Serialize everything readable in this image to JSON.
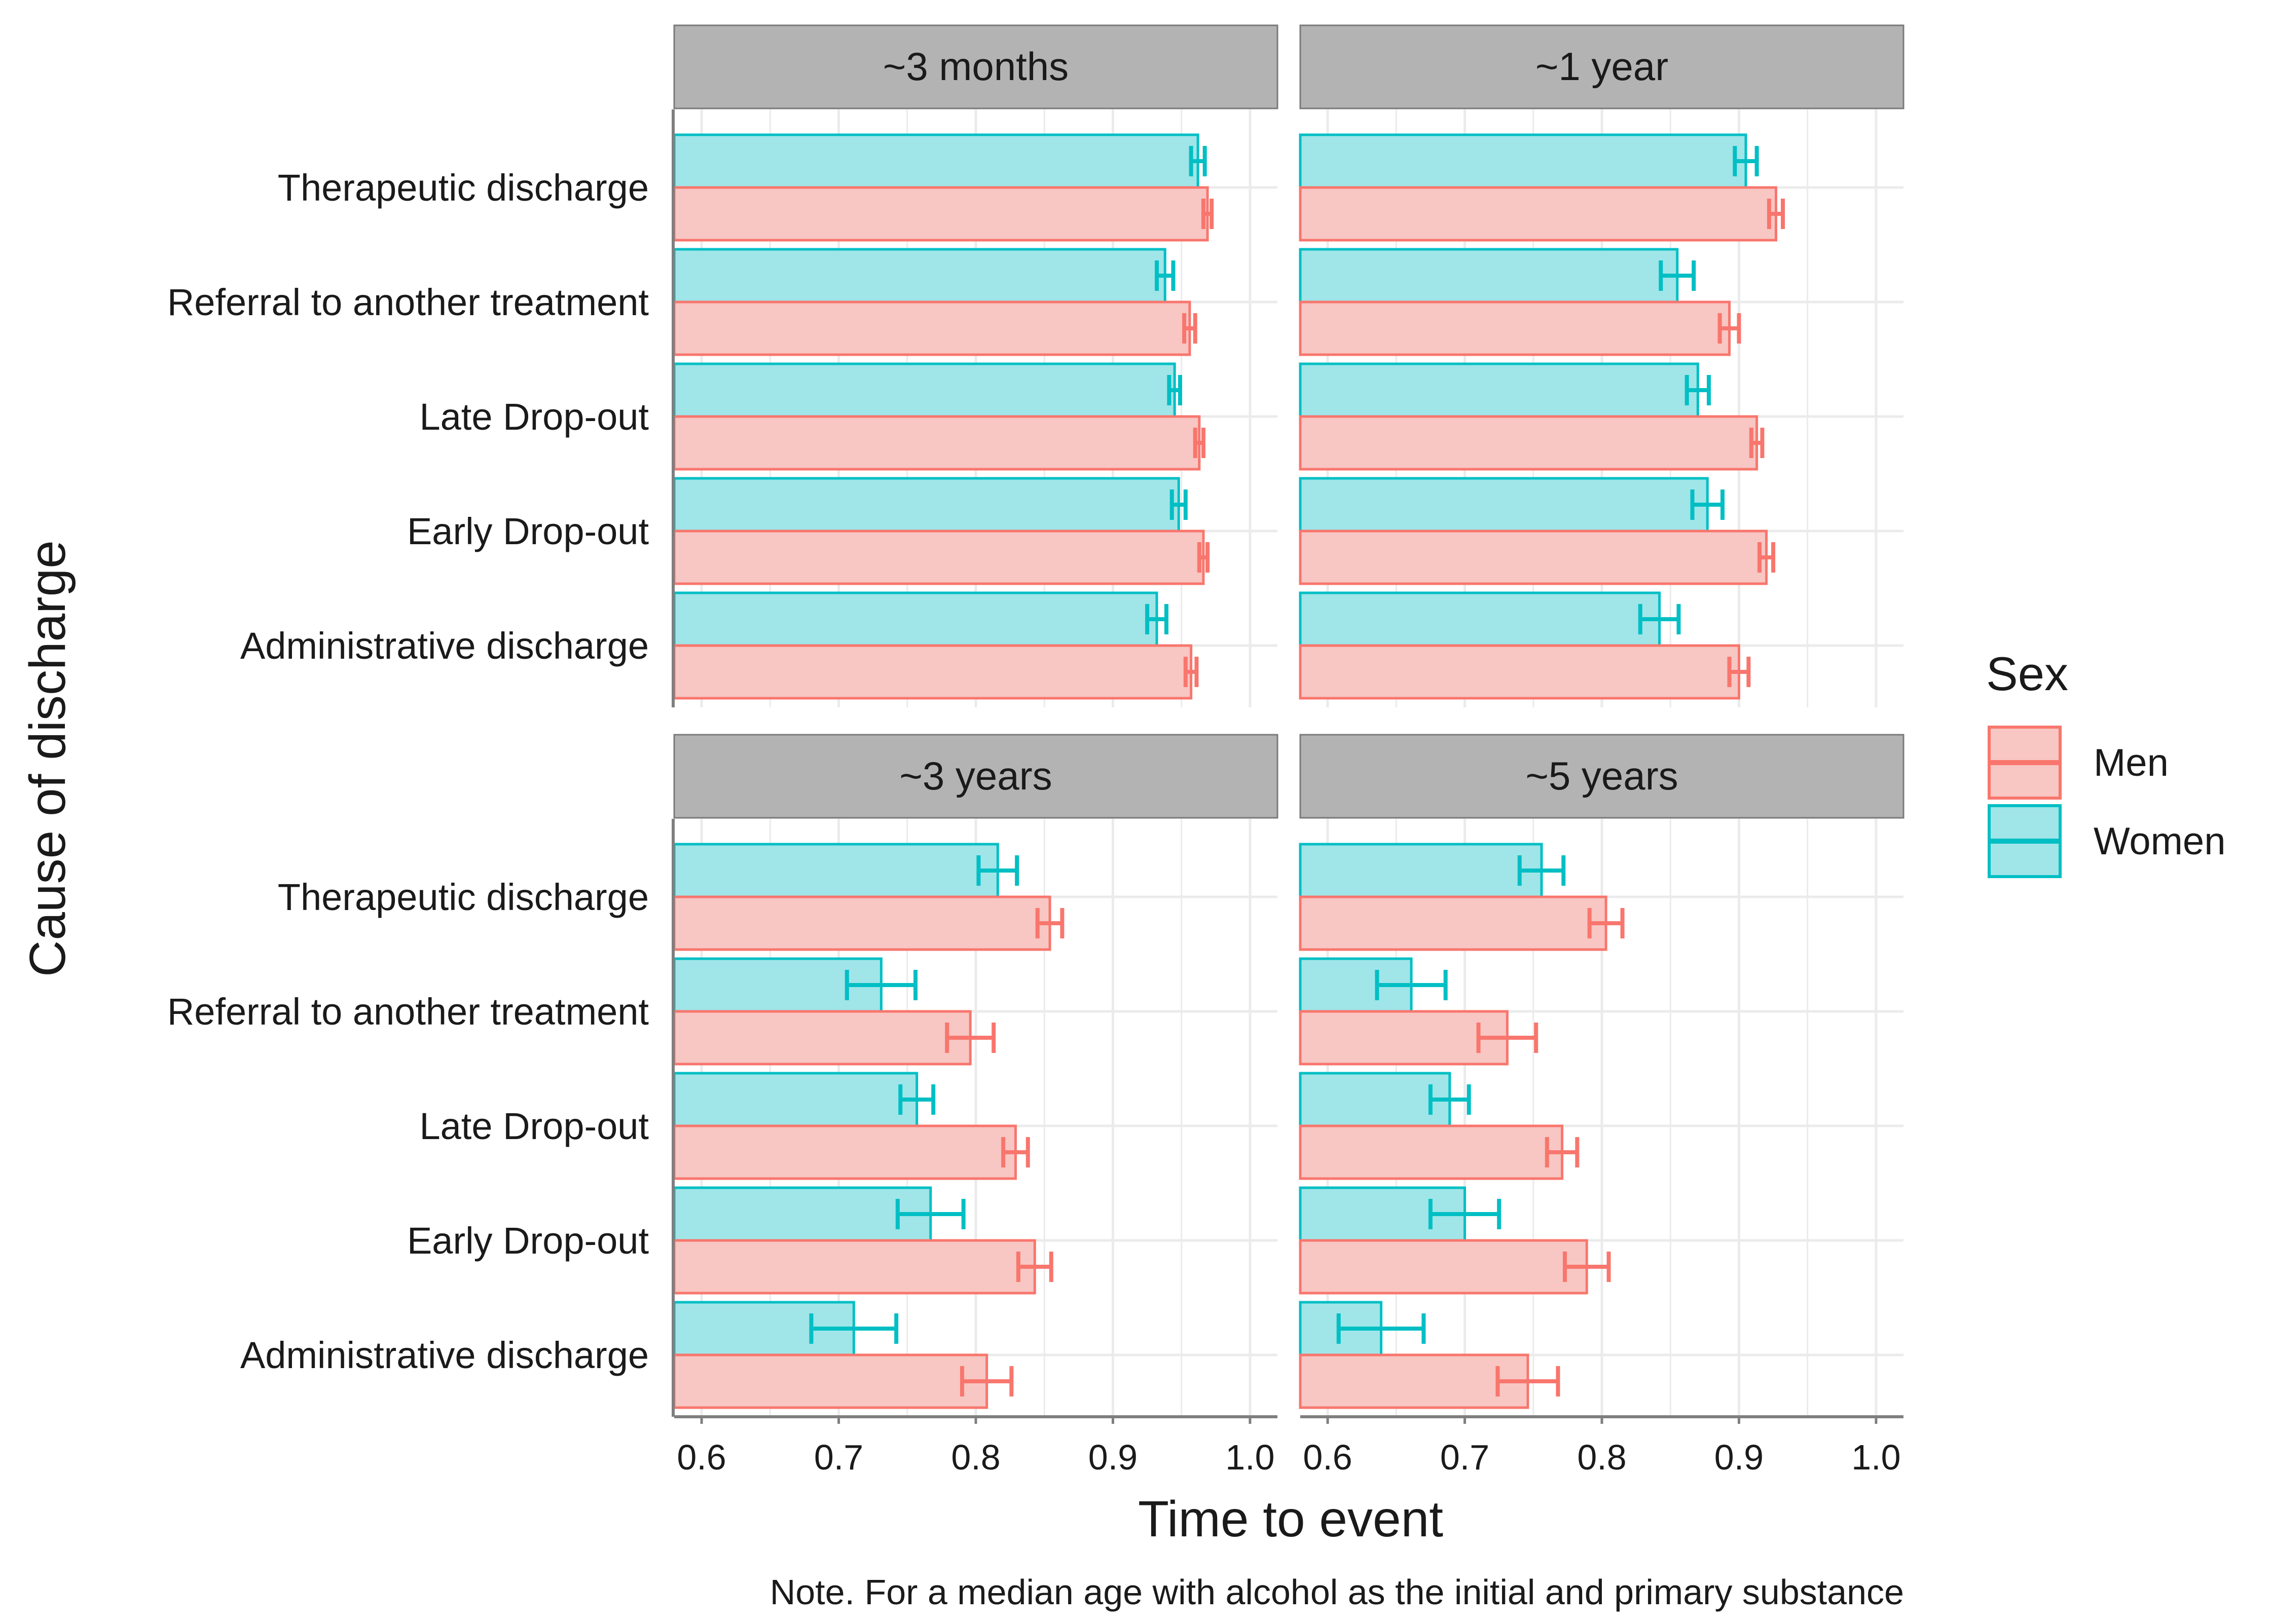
{
  "chart_data": {
    "type": "bar",
    "orientation": "horizontal",
    "facet": true,
    "xlabel": "Time to event",
    "ylabel": "Cause of discharge",
    "xlim": [
      0.58,
      1.02
    ],
    "xticks": [
      0.6,
      0.7,
      0.8,
      0.9,
      1.0
    ],
    "xtick_labels": [
      "0.6",
      "0.7",
      "0.8",
      "0.9",
      "1.0"
    ],
    "grid": true,
    "categories": [
      "Therapeutic discharge",
      "Referral to another treatment",
      "Late Drop-out",
      "Early Drop-out",
      "Administrative discharge"
    ],
    "legend": {
      "title": "Sex",
      "position": "right",
      "entries": [
        {
          "name": "Men",
          "fill": "#f8c6c3",
          "stroke": "#f8766d"
        },
        {
          "name": "Women",
          "fill": "#a0e5e8",
          "stroke": "#00bfc4"
        }
      ]
    },
    "note": "Note. For a median age with alcohol as the initial and primary substance",
    "panels": [
      {
        "title": "~3 months",
        "series": [
          {
            "name": "Women",
            "values": [
              0.962,
              0.938,
              0.945,
              0.948,
              0.932
            ],
            "ci_low": [
              0.957,
              0.932,
              0.941,
              0.943,
              0.925
            ],
            "ci_high": [
              0.967,
              0.944,
              0.949,
              0.953,
              0.939
            ]
          },
          {
            "name": "Men",
            "values": [
              0.969,
              0.956,
              0.963,
              0.966,
              0.957
            ],
            "ci_low": [
              0.966,
              0.952,
              0.96,
              0.963,
              0.953
            ],
            "ci_high": [
              0.972,
              0.96,
              0.966,
              0.969,
              0.961
            ]
          }
        ]
      },
      {
        "title": "~1 year",
        "series": [
          {
            "name": "Women",
            "values": [
              0.905,
              0.855,
              0.87,
              0.877,
              0.842
            ],
            "ci_low": [
              0.897,
              0.843,
              0.862,
              0.866,
              0.828
            ],
            "ci_high": [
              0.913,
              0.867,
              0.878,
              0.888,
              0.856
            ]
          },
          {
            "name": "Men",
            "values": [
              0.927,
              0.893,
              0.913,
              0.92,
              0.9
            ],
            "ci_low": [
              0.922,
              0.886,
              0.909,
              0.915,
              0.893
            ],
            "ci_high": [
              0.932,
              0.9,
              0.917,
              0.925,
              0.907
            ]
          }
        ]
      },
      {
        "title": "~3 years",
        "series": [
          {
            "name": "Women",
            "values": [
              0.816,
              0.731,
              0.757,
              0.767,
              0.711
            ],
            "ci_low": [
              0.802,
              0.706,
              0.745,
              0.743,
              0.68
            ],
            "ci_high": [
              0.83,
              0.756,
              0.769,
              0.791,
              0.742
            ]
          },
          {
            "name": "Men",
            "values": [
              0.854,
              0.796,
              0.829,
              0.843,
              0.808
            ],
            "ci_low": [
              0.845,
              0.779,
              0.82,
              0.831,
              0.79
            ],
            "ci_high": [
              0.863,
              0.813,
              0.838,
              0.855,
              0.826
            ]
          }
        ]
      },
      {
        "title": "~5 years",
        "series": [
          {
            "name": "Women",
            "values": [
              0.756,
              0.661,
              0.689,
              0.7,
              0.639
            ],
            "ci_low": [
              0.74,
              0.636,
              0.675,
              0.675,
              0.608
            ],
            "ci_high": [
              0.772,
              0.686,
              0.703,
              0.725,
              0.67
            ]
          },
          {
            "name": "Men",
            "values": [
              0.803,
              0.731,
              0.771,
              0.789,
              0.746
            ],
            "ci_low": [
              0.791,
              0.71,
              0.76,
              0.773,
              0.724
            ],
            "ci_high": [
              0.815,
              0.752,
              0.782,
              0.805,
              0.768
            ]
          }
        ]
      }
    ]
  }
}
